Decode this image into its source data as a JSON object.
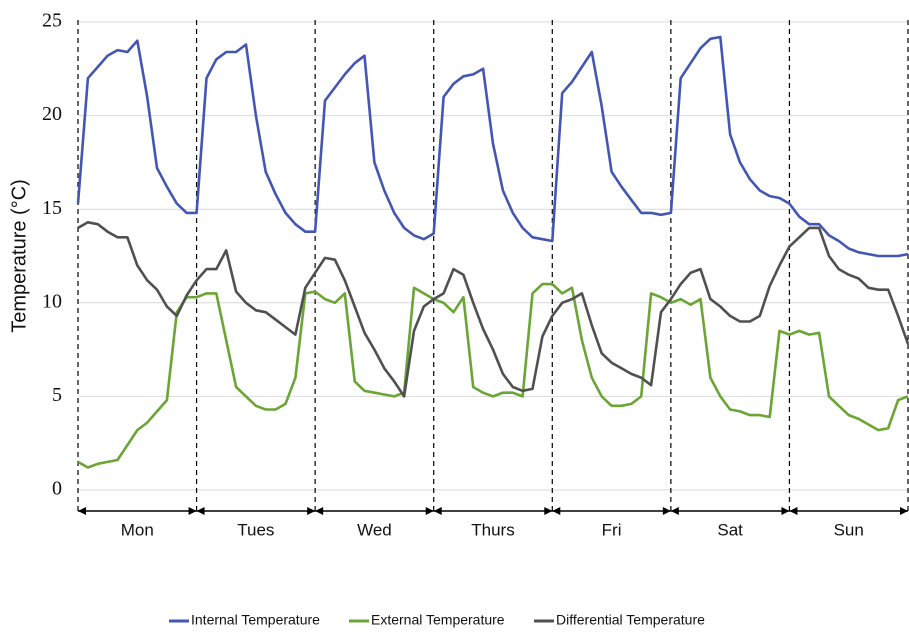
{
  "chart_data": {
    "type": "line",
    "y_label": "Temperature (°C)",
    "categories": [
      "Mon",
      "Tues",
      "Wed",
      "Thurs",
      "Fri",
      "Sat",
      "Sun"
    ],
    "x": [
      0,
      2,
      4,
      6,
      8,
      10,
      12,
      14,
      16,
      18,
      20,
      22,
      24,
      26,
      28,
      30,
      32,
      34,
      36,
      38,
      40,
      42,
      44,
      46,
      48,
      50,
      52,
      54,
      56,
      58,
      60,
      62,
      64,
      66,
      68,
      70,
      72,
      74,
      76,
      78,
      80,
      82,
      84,
      86,
      88,
      90,
      92,
      94,
      96,
      98,
      100,
      102,
      104,
      106,
      108,
      110,
      112,
      114,
      116,
      118,
      120,
      122,
      124,
      126,
      128,
      130,
      132,
      134,
      136,
      138,
      140,
      142,
      144,
      146,
      148,
      150,
      152,
      154,
      156,
      158,
      160,
      162,
      164,
      166,
      168
    ],
    "xlim": [
      0,
      168
    ],
    "ylim": [
      0,
      25
    ],
    "yticks": [
      0,
      5,
      10,
      15,
      20,
      25
    ],
    "grid": true,
    "legend": "bottom",
    "series": [
      {
        "name": "Internal Temperature",
        "color": "#4456b4",
        "values": [
          15.3,
          22,
          22.6,
          23.2,
          23.5,
          23.4,
          24,
          21,
          17.2,
          16.2,
          15.3,
          14.8,
          14.8,
          22,
          23,
          23.4,
          23.4,
          23.8,
          20,
          17,
          15.8,
          14.8,
          14.2,
          13.8,
          13.8,
          20.8,
          21.5,
          22.2,
          22.8,
          23.2,
          17.5,
          16,
          14.8,
          14,
          13.6,
          13.4,
          13.7,
          21,
          21.7,
          22.1,
          22.2,
          22.5,
          18.5,
          16,
          14.8,
          14,
          13.5,
          13.4,
          13.3,
          21.2,
          21.8,
          22.6,
          23.4,
          20.5,
          17,
          16.2,
          15.5,
          14.8,
          14.8,
          14.7,
          14.8,
          22,
          22.8,
          23.6,
          24.1,
          24.2,
          19,
          17.5,
          16.6,
          16,
          15.7,
          15.6,
          15.3,
          14.6,
          14.2,
          14.2,
          13.6,
          13.3,
          12.9,
          12.7,
          12.6,
          12.5,
          12.5,
          12.5,
          12.6
        ]
      },
      {
        "name": "External Temperature",
        "color": "#6aa535",
        "values": [
          1.5,
          1.2,
          1.4,
          1.5,
          1.6,
          2.4,
          3.2,
          3.6,
          4.2,
          4.8,
          9.5,
          10.3,
          10.3,
          10.5,
          10.5,
          8,
          5.5,
          5,
          4.5,
          4.3,
          4.3,
          4.6,
          6,
          10.5,
          10.6,
          10.2,
          10,
          10.5,
          5.8,
          5.3,
          5.2,
          5.1,
          5,
          5.2,
          10.8,
          10.5,
          10.2,
          10,
          9.5,
          10.3,
          5.5,
          5.2,
          5,
          5.2,
          5.2,
          5,
          10.5,
          11,
          11,
          10.5,
          10.8,
          8,
          6,
          5,
          4.5,
          4.5,
          4.6,
          5,
          10.5,
          10.3,
          10,
          10.2,
          9.9,
          10.2,
          6,
          5,
          4.3,
          4.2,
          4,
          4,
          3.9,
          8.5,
          8.3,
          8.5,
          8.3,
          8.4,
          5,
          4.5,
          4,
          3.8,
          3.5,
          3.2,
          3.3,
          4.8,
          5
        ]
      },
      {
        "name": "Differential Temperature",
        "color": "#505050",
        "values": [
          14,
          14.3,
          14.2,
          13.8,
          13.5,
          13.5,
          12,
          11.2,
          10.7,
          9.8,
          9.3,
          10.4,
          11.2,
          11.8,
          11.8,
          12.8,
          10.6,
          10,
          9.6,
          9.5,
          9.1,
          8.7,
          8.3,
          10.8,
          11.6,
          12.4,
          12.3,
          11.2,
          9.8,
          8.4,
          7.5,
          6.5,
          5.8,
          5,
          8.5,
          9.8,
          10.2,
          10.5,
          11.8,
          11.5,
          10,
          8.6,
          7.5,
          6.2,
          5.5,
          5.3,
          5.4,
          8.2,
          9.3,
          10,
          10.2,
          10.5,
          8.8,
          7.3,
          6.8,
          6.5,
          6.2,
          6,
          5.6,
          9.5,
          10.2,
          11,
          11.6,
          11.8,
          10.2,
          9.8,
          9.3,
          9,
          9,
          9.3,
          10.9,
          12,
          13,
          13.5,
          14,
          14,
          12.5,
          11.8,
          11.5,
          11.3,
          10.8,
          10.7,
          10.7,
          9.3,
          7.8
        ]
      }
    ]
  }
}
